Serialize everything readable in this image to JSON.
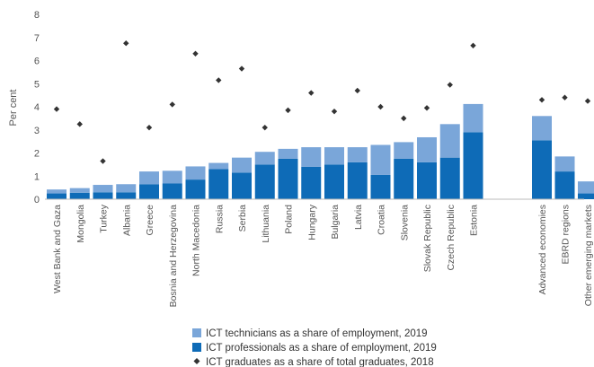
{
  "chart_data": {
    "type": "bar",
    "stacked": true,
    "categories": [
      "West Bank and Gaza",
      "Mongolia",
      "Turkey",
      "Albania",
      "Greece",
      "Bosnia and Herzegovina",
      "North Macedonia",
      "Russia",
      "Serbia",
      "Lithuania",
      "Poland",
      "Hungary",
      "Bulgaria",
      "Latvia",
      "Croatia",
      "Slovenia",
      "Slovak Republic",
      "Czech Republic",
      "Estonia",
      "Advanced economies",
      "EBRD regions",
      "Other emerging markets"
    ],
    "series": [
      {
        "name": "ICT professionals as a share of employment, 2019",
        "kind": "bar",
        "color": "#0e6bb7",
        "values": [
          0.25,
          0.28,
          0.3,
          0.3,
          0.65,
          0.68,
          0.85,
          1.3,
          1.15,
          1.5,
          1.75,
          1.4,
          1.5,
          1.6,
          1.05,
          1.75,
          1.6,
          1.8,
          2.9,
          2.55,
          1.2,
          0.25
        ]
      },
      {
        "name": "ICT technicians as a share of employment, 2019",
        "kind": "bar",
        "color": "#7aa6d9",
        "values": [
          0.17,
          0.2,
          0.32,
          0.35,
          0.55,
          0.55,
          0.57,
          0.27,
          0.65,
          0.55,
          0.43,
          0.85,
          0.75,
          0.65,
          1.3,
          0.72,
          1.08,
          1.45,
          1.22,
          1.05,
          0.65,
          0.52
        ]
      },
      {
        "name": "ICT graduates as a share of total graduates, 2018",
        "kind": "marker",
        "color": "#333333",
        "values": [
          3.9,
          3.25,
          1.65,
          6.75,
          3.1,
          4.1,
          6.3,
          5.15,
          5.65,
          3.1,
          3.85,
          4.6,
          3.8,
          4.7,
          4.0,
          3.5,
          3.95,
          4.95,
          6.65,
          4.3,
          4.4,
          4.25
        ]
      }
    ],
    "ylim": [
      0,
      8
    ],
    "yticks": [
      "0",
      "1",
      "2",
      "3",
      "4",
      "5",
      "6",
      "7",
      "8"
    ],
    "ylabel": "Per cent",
    "xlabel": "",
    "title": "",
    "grid": false,
    "legend_position": "bottom-center"
  }
}
